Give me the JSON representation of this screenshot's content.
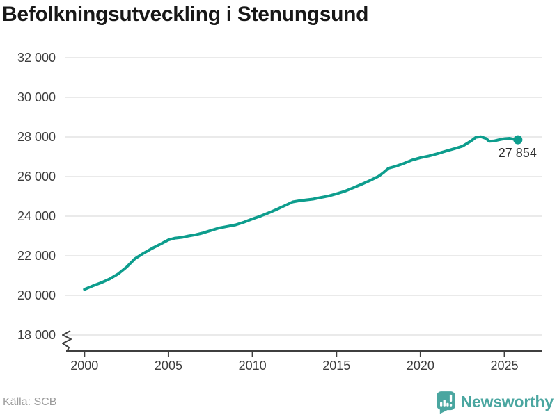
{
  "title": "Befolkningsutveckling i Stenungsund",
  "source": "Källa: SCB",
  "branding": {
    "name": "Newsworthy",
    "logo_color": "#4aa6a0",
    "logo_icon": "bar-chart-exclamation-bubble"
  },
  "colors": {
    "line": "#0d9d8d",
    "grid": "#e3e3e3",
    "axis": "#3f3f3f",
    "tick_text": "#3d3d3d",
    "end_label_text": "#2b2b2b"
  },
  "chart_data": {
    "type": "line",
    "title": "Befolkningsutveckling i Stenungsund",
    "xlabel": "",
    "ylabel": "",
    "xlim": [
      1999,
      2027.2
    ],
    "ylim": [
      18000,
      32000
    ],
    "axis_break": true,
    "grid": "horizontal",
    "legend": "none",
    "x_ticks": [
      2000,
      2005,
      2010,
      2015,
      2020,
      2025
    ],
    "y_ticks": [
      18000,
      20000,
      22000,
      24000,
      26000,
      28000,
      30000,
      32000
    ],
    "y_tick_labels": [
      "18 000",
      "20 000",
      "22 000",
      "24 000",
      "26 000",
      "28 000",
      "30 000",
      "32 000"
    ],
    "end_label": "27 854",
    "end_value": 27854,
    "series": [
      {
        "name": "befolkning",
        "color": "#0d9d8d",
        "points": [
          [
            2000.0,
            20300
          ],
          [
            2000.5,
            20480
          ],
          [
            2001.0,
            20640
          ],
          [
            2001.5,
            20830
          ],
          [
            2002.0,
            21080
          ],
          [
            2002.5,
            21420
          ],
          [
            2003.0,
            21850
          ],
          [
            2003.5,
            22120
          ],
          [
            2004.0,
            22360
          ],
          [
            2004.5,
            22580
          ],
          [
            2005.0,
            22800
          ],
          [
            2005.4,
            22890
          ],
          [
            2005.8,
            22930
          ],
          [
            2006.2,
            23000
          ],
          [
            2006.6,
            23060
          ],
          [
            2007.0,
            23140
          ],
          [
            2007.5,
            23270
          ],
          [
            2008.0,
            23400
          ],
          [
            2008.5,
            23480
          ],
          [
            2009.0,
            23560
          ],
          [
            2009.5,
            23700
          ],
          [
            2010.0,
            23860
          ],
          [
            2010.5,
            24010
          ],
          [
            2011.0,
            24180
          ],
          [
            2011.5,
            24360
          ],
          [
            2012.0,
            24560
          ],
          [
            2012.4,
            24720
          ],
          [
            2012.8,
            24780
          ],
          [
            2013.2,
            24820
          ],
          [
            2013.6,
            24860
          ],
          [
            2014.0,
            24930
          ],
          [
            2014.5,
            25010
          ],
          [
            2015.0,
            25130
          ],
          [
            2015.5,
            25260
          ],
          [
            2016.0,
            25430
          ],
          [
            2016.5,
            25610
          ],
          [
            2017.0,
            25800
          ],
          [
            2017.5,
            26010
          ],
          [
            2017.8,
            26200
          ],
          [
            2018.1,
            26420
          ],
          [
            2018.5,
            26510
          ],
          [
            2019.0,
            26660
          ],
          [
            2019.5,
            26830
          ],
          [
            2020.0,
            26950
          ],
          [
            2020.5,
            27040
          ],
          [
            2021.0,
            27150
          ],
          [
            2021.5,
            27280
          ],
          [
            2022.0,
            27400
          ],
          [
            2022.5,
            27530
          ],
          [
            2023.0,
            27790
          ],
          [
            2023.3,
            27980
          ],
          [
            2023.6,
            28010
          ],
          [
            2023.9,
            27920
          ],
          [
            2024.1,
            27780
          ],
          [
            2024.4,
            27800
          ],
          [
            2024.7,
            27860
          ],
          [
            2025.0,
            27910
          ],
          [
            2025.3,
            27930
          ],
          [
            2025.55,
            27880
          ],
          [
            2025.8,
            27854
          ]
        ]
      }
    ]
  }
}
